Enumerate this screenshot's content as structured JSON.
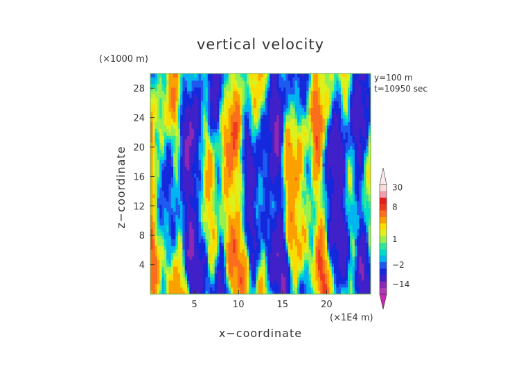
{
  "chart_data": {
    "type": "heatmap",
    "title": "vertical velocity",
    "xlabel": "x−coordinate",
    "ylabel": "z−coordinate",
    "x_unit": "(×1E4 m)",
    "y_unit": "(×1000 m)",
    "annotations": [
      "y=100 m",
      "t=10950 sec"
    ],
    "xlim": [
      0,
      25
    ],
    "ylim": [
      0,
      30
    ],
    "x_ticks": [
      "5",
      "10",
      "15",
      "20"
    ],
    "y_ticks": [
      "4",
      "8",
      "12",
      "16",
      "20",
      "24",
      "28"
    ],
    "x_tick_values": [
      5,
      10,
      15,
      20
    ],
    "y_tick_values": [
      4,
      8,
      12,
      16,
      20,
      24,
      28
    ],
    "colorbar": {
      "levels": [
        {
          "value": -20,
          "color": "#b03cb4"
        },
        {
          "value": -14,
          "color": "#8c28b4"
        },
        {
          "value": -8,
          "color": "#4020c8"
        },
        {
          "value": -4,
          "color": "#1428dc"
        },
        {
          "value": -2,
          "color": "#1e5af0"
        },
        {
          "value": -1,
          "color": "#00b4f0"
        },
        {
          "value": 0,
          "color": "#00dcc8"
        },
        {
          "value": 0.5,
          "color": "#32e696"
        },
        {
          "value": 1,
          "color": "#96f050"
        },
        {
          "value": 2,
          "color": "#dcf01e"
        },
        {
          "value": 3,
          "color": "#fadc00"
        },
        {
          "value": 4,
          "color": "#faa000"
        },
        {
          "value": 6,
          "color": "#fa6e1e"
        },
        {
          "value": 8,
          "color": "#f03c1e"
        },
        {
          "value": 12,
          "color": "#e61e1e"
        },
        {
          "value": 18,
          "color": "#f0a0aa"
        },
        {
          "value": 30,
          "color": "#fadcdc"
        }
      ],
      "tick_labels": [
        {
          "value": 30,
          "label": "30"
        },
        {
          "value": 8,
          "label": "8"
        },
        {
          "value": 1,
          "label": "1"
        },
        {
          "value": -2,
          "label": "−2"
        },
        {
          "value": -14,
          "label": "−14"
        }
      ],
      "low_extend_color": "#c828b4",
      "high_extend_color": "#faeaea"
    }
  }
}
